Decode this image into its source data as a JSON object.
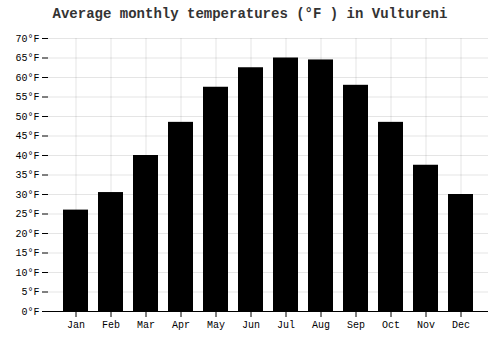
{
  "chart_data": {
    "type": "bar",
    "title": "Average monthly temperatures (°F ) in Vultureni",
    "categories": [
      "Jan",
      "Feb",
      "Mar",
      "Apr",
      "May",
      "Jun",
      "Jul",
      "Aug",
      "Sep",
      "Oct",
      "Nov",
      "Dec"
    ],
    "values": [
      26,
      30.5,
      40,
      48.5,
      57.5,
      62.5,
      65,
      64.5,
      58,
      48.5,
      37.5,
      30
    ],
    "ylim": [
      0,
      70
    ],
    "yticks": [
      {
        "value": 0,
        "label": "0°F"
      },
      {
        "value": 5,
        "label": "5°F"
      },
      {
        "value": 10,
        "label": "10°F"
      },
      {
        "value": 15,
        "label": "15°F"
      },
      {
        "value": 20,
        "label": "20°F"
      },
      {
        "value": 25,
        "label": "25°F"
      },
      {
        "value": 30,
        "label": "30°F"
      },
      {
        "value": 35,
        "label": "35°F"
      },
      {
        "value": 40,
        "label": "40°F"
      },
      {
        "value": 45,
        "label": "45°F"
      },
      {
        "value": 50,
        "label": "50°F"
      },
      {
        "value": 55,
        "label": "55°F"
      },
      {
        "value": 60,
        "label": "60°F"
      },
      {
        "value": 65,
        "label": "65°F"
      },
      {
        "value": 70,
        "label": "70°F"
      }
    ],
    "grid": true
  }
}
